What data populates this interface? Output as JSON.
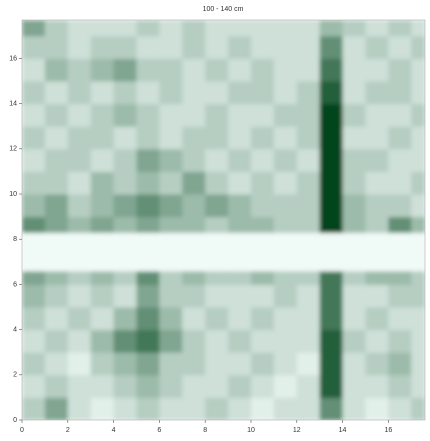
{
  "chart_data": {
    "type": "heatmap",
    "title": "100 - 140 cm",
    "xbins": [
      0,
      1,
      2,
      3,
      4,
      5,
      6,
      7,
      8,
      9,
      10,
      11,
      12,
      13,
      14,
      15,
      16,
      17,
      17.6
    ],
    "ybins": [
      0,
      1,
      2,
      3,
      4,
      5,
      6,
      6.6,
      8.3,
      9,
      10,
      11,
      12,
      13,
      14,
      15,
      16,
      17,
      17.7
    ],
    "xlim": [
      0,
      17.6
    ],
    "ylim": [
      0,
      17.7
    ],
    "xticks": [
      0,
      2,
      4,
      6,
      8,
      10,
      12,
      14,
      16
    ],
    "yticks": [
      0,
      2,
      4,
      6,
      8,
      10,
      12,
      14,
      16
    ],
    "colors": [
      "#f0faf7",
      "#00441b"
    ],
    "z": [
      [
        3,
        5,
        2,
        1,
        2,
        3,
        2,
        2,
        3,
        2,
        1,
        2,
        2,
        6,
        2,
        1,
        2,
        3
      ],
      [
        2,
        3,
        2,
        2,
        3,
        4,
        3,
        2,
        2,
        3,
        2,
        1,
        2,
        8,
        2,
        2,
        3,
        2
      ],
      [
        3,
        2,
        1,
        3,
        4,
        5,
        3,
        3,
        2,
        2,
        3,
        2,
        1,
        8,
        2,
        3,
        4,
        2
      ],
      [
        2,
        3,
        2,
        4,
        6,
        7,
        5,
        3,
        2,
        3,
        2,
        2,
        2,
        8,
        3,
        2,
        3,
        2
      ],
      [
        3,
        2,
        3,
        2,
        4,
        6,
        4,
        2,
        3,
        2,
        3,
        2,
        2,
        7,
        2,
        3,
        2,
        2
      ],
      [
        4,
        3,
        2,
        3,
        2,
        5,
        3,
        3,
        2,
        2,
        2,
        3,
        2,
        7,
        2,
        2,
        3,
        3
      ],
      [
        5,
        4,
        3,
        4,
        3,
        6,
        3,
        4,
        3,
        3,
        4,
        3,
        3,
        7,
        3,
        4,
        4,
        3
      ],
      [
        0,
        0,
        0,
        0,
        0,
        0,
        0,
        0,
        0,
        0,
        0,
        0,
        0,
        0,
        0,
        0,
        0,
        0
      ],
      [
        6,
        5,
        4,
        5,
        4,
        5,
        4,
        4,
        3,
        4,
        4,
        3,
        3,
        9,
        4,
        3,
        6,
        4
      ],
      [
        4,
        5,
        3,
        4,
        5,
        6,
        5,
        4,
        5,
        4,
        3,
        3,
        3,
        9,
        4,
        3,
        3,
        2
      ],
      [
        3,
        3,
        2,
        4,
        3,
        4,
        3,
        5,
        3,
        2,
        3,
        2,
        3,
        9,
        3,
        2,
        2,
        3
      ],
      [
        2,
        3,
        3,
        2,
        3,
        5,
        4,
        3,
        2,
        3,
        2,
        3,
        2,
        9,
        3,
        3,
        2,
        2
      ],
      [
        3,
        2,
        3,
        3,
        2,
        3,
        2,
        3,
        3,
        2,
        3,
        2,
        3,
        9,
        2,
        2,
        3,
        2
      ],
      [
        2,
        3,
        2,
        3,
        4,
        3,
        2,
        2,
        3,
        2,
        2,
        3,
        3,
        9,
        3,
        2,
        2,
        3
      ],
      [
        3,
        2,
        3,
        2,
        3,
        2,
        3,
        2,
        2,
        3,
        3,
        2,
        3,
        8,
        2,
        3,
        3,
        2
      ],
      [
        2,
        4,
        3,
        4,
        5,
        3,
        3,
        2,
        3,
        2,
        3,
        2,
        2,
        7,
        2,
        2,
        3,
        2
      ],
      [
        3,
        3,
        2,
        3,
        3,
        2,
        2,
        3,
        2,
        3,
        2,
        2,
        2,
        6,
        2,
        3,
        2,
        3
      ],
      [
        5,
        3,
        2,
        2,
        2,
        3,
        2,
        3,
        2,
        2,
        2,
        2,
        2,
        4,
        3,
        2,
        3,
        2
      ]
    ]
  }
}
